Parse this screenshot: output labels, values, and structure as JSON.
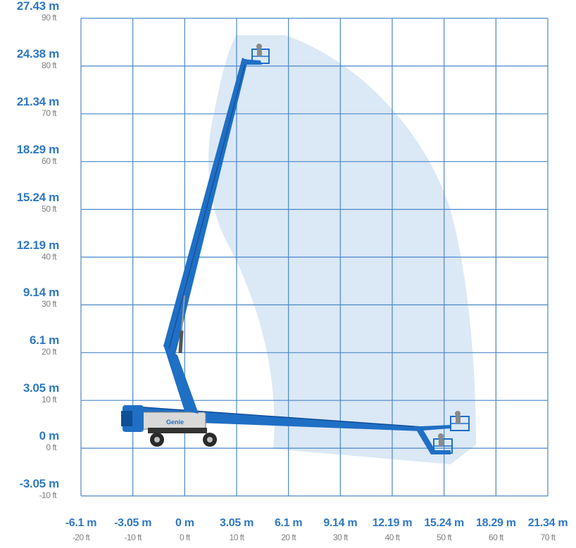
{
  "chart_data": {
    "type": "diagram",
    "title": "",
    "y_ticks": [
      {
        "m": "27.43 m",
        "ft": "90 ft"
      },
      {
        "m": "24.38 m",
        "ft": "80 ft"
      },
      {
        "m": "21.34 m",
        "ft": "70 ft"
      },
      {
        "m": "18.29 m",
        "ft": "60 ft"
      },
      {
        "m": "15.24 m",
        "ft": "50 ft"
      },
      {
        "m": "12.19 m",
        "ft": "40 ft"
      },
      {
        "m": "9.14 m",
        "ft": "30 ft"
      },
      {
        "m": "6.1 m",
        "ft": "20 ft"
      },
      {
        "m": "3.05 m",
        "ft": "10 ft"
      },
      {
        "m": "0 m",
        "ft": "0 ft"
      },
      {
        "m": "-3.05 m",
        "ft": "-10 ft"
      }
    ],
    "x_ticks": [
      {
        "m": "-6.1 m",
        "ft": "-20 ft"
      },
      {
        "m": "-3.05 m",
        "ft": "-10 ft"
      },
      {
        "m": "0 m",
        "ft": "0 ft"
      },
      {
        "m": "3.05 m",
        "ft": "10 ft"
      },
      {
        "m": "6.1 m",
        "ft": "20 ft"
      },
      {
        "m": "9.14 m",
        "ft": "30 ft"
      },
      {
        "m": "12.19 m",
        "ft": "40 ft"
      },
      {
        "m": "15.24 m",
        "ft": "50 ft"
      },
      {
        "m": "18.29 m",
        "ft": "60 ft"
      },
      {
        "m": "21.34 m",
        "ft": "70 ft"
      }
    ],
    "x_range_ft": [
      -20,
      70
    ],
    "y_range_ft": [
      -10,
      90
    ],
    "grid": true,
    "machine_label": "Genie",
    "colors": {
      "grid": "#4a87c9",
      "envelope": "#dbe8f5",
      "boom": "#1f6fc5",
      "boom_dark": "#0f4f96",
      "axis_m": "#2e78c4",
      "axis_ft": "#7f7f7f"
    }
  }
}
